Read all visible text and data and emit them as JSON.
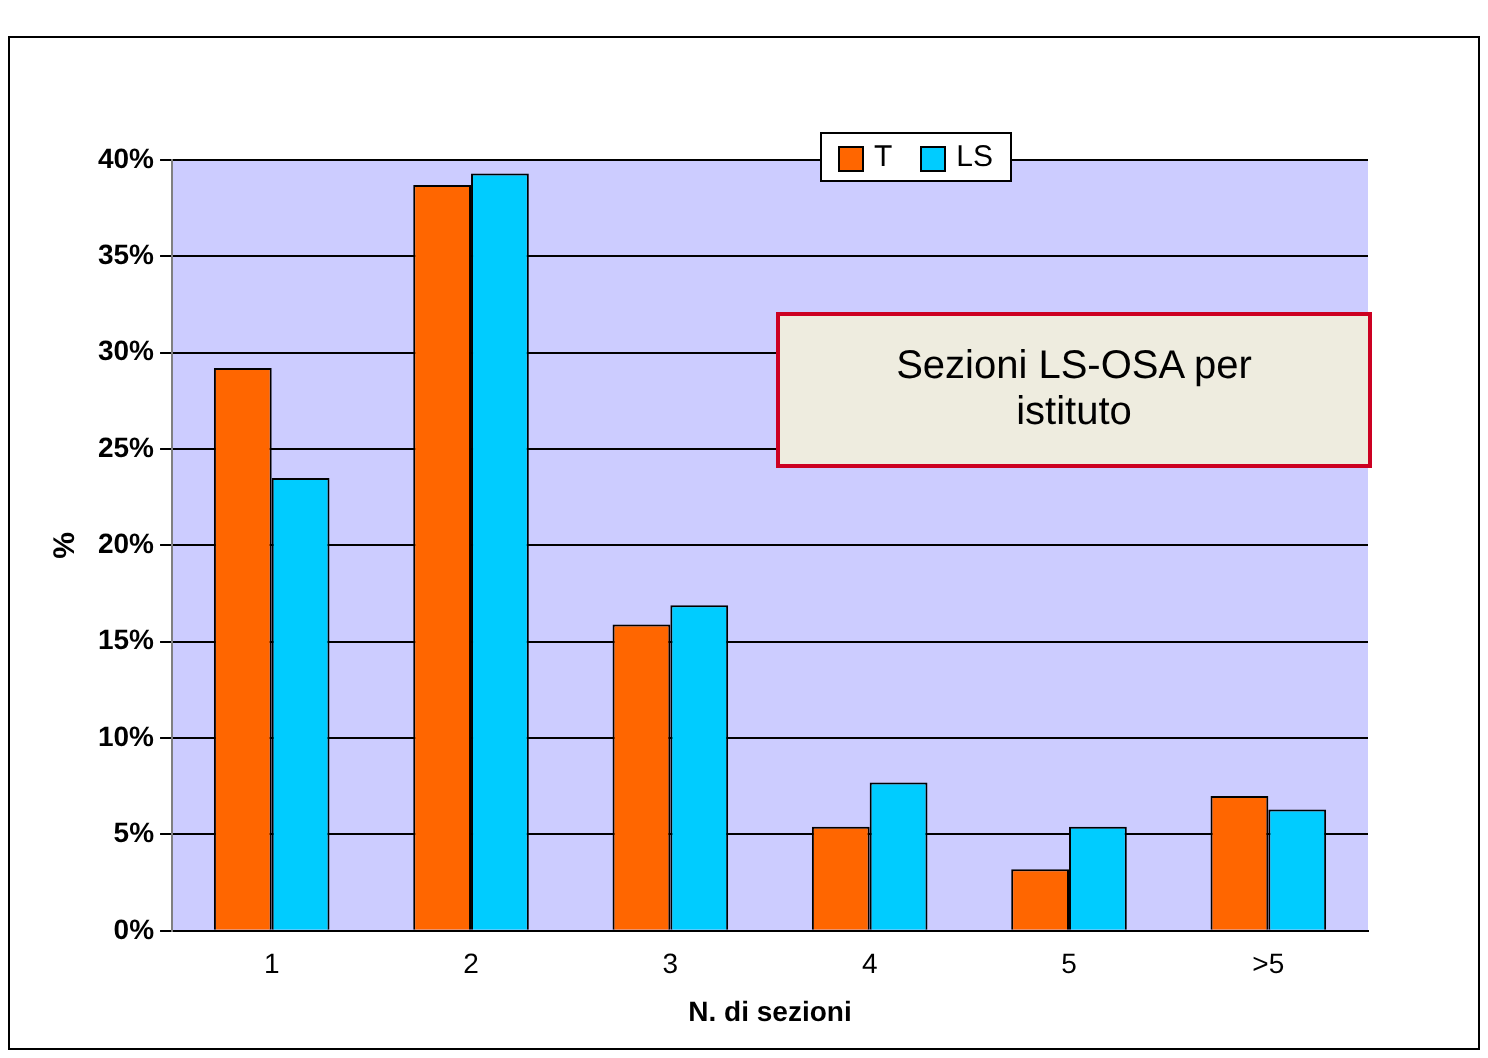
{
  "chart_data": {
    "type": "bar",
    "title": "Sezioni LS-OSA per istituto",
    "xlabel": "N. di sezioni",
    "ylabel": "%",
    "categories": [
      "1",
      "2",
      "3",
      "4",
      "5",
      ">5"
    ],
    "series": [
      {
        "name": "T",
        "color": "#ff6600",
        "values": [
          29.2,
          38.7,
          15.9,
          5.4,
          3.2,
          7.0
        ]
      },
      {
        "name": "LS",
        "color": "#00ccff",
        "values": [
          23.5,
          39.3,
          16.9,
          7.7,
          5.4,
          6.3
        ]
      }
    ],
    "ylim": [
      0,
      40
    ],
    "yticks": [
      {
        "value": 0,
        "label": "0%"
      },
      {
        "value": 5,
        "label": "5%"
      },
      {
        "value": 10,
        "label": "10%"
      },
      {
        "value": 15,
        "label": "15%"
      },
      {
        "value": 20,
        "label": "20%"
      },
      {
        "value": 25,
        "label": "25%"
      },
      {
        "value": 30,
        "label": "30%"
      },
      {
        "value": 35,
        "label": "35%"
      },
      {
        "value": 40,
        "label": "40%"
      }
    ],
    "grid": "y",
    "legend": "top right"
  }
}
